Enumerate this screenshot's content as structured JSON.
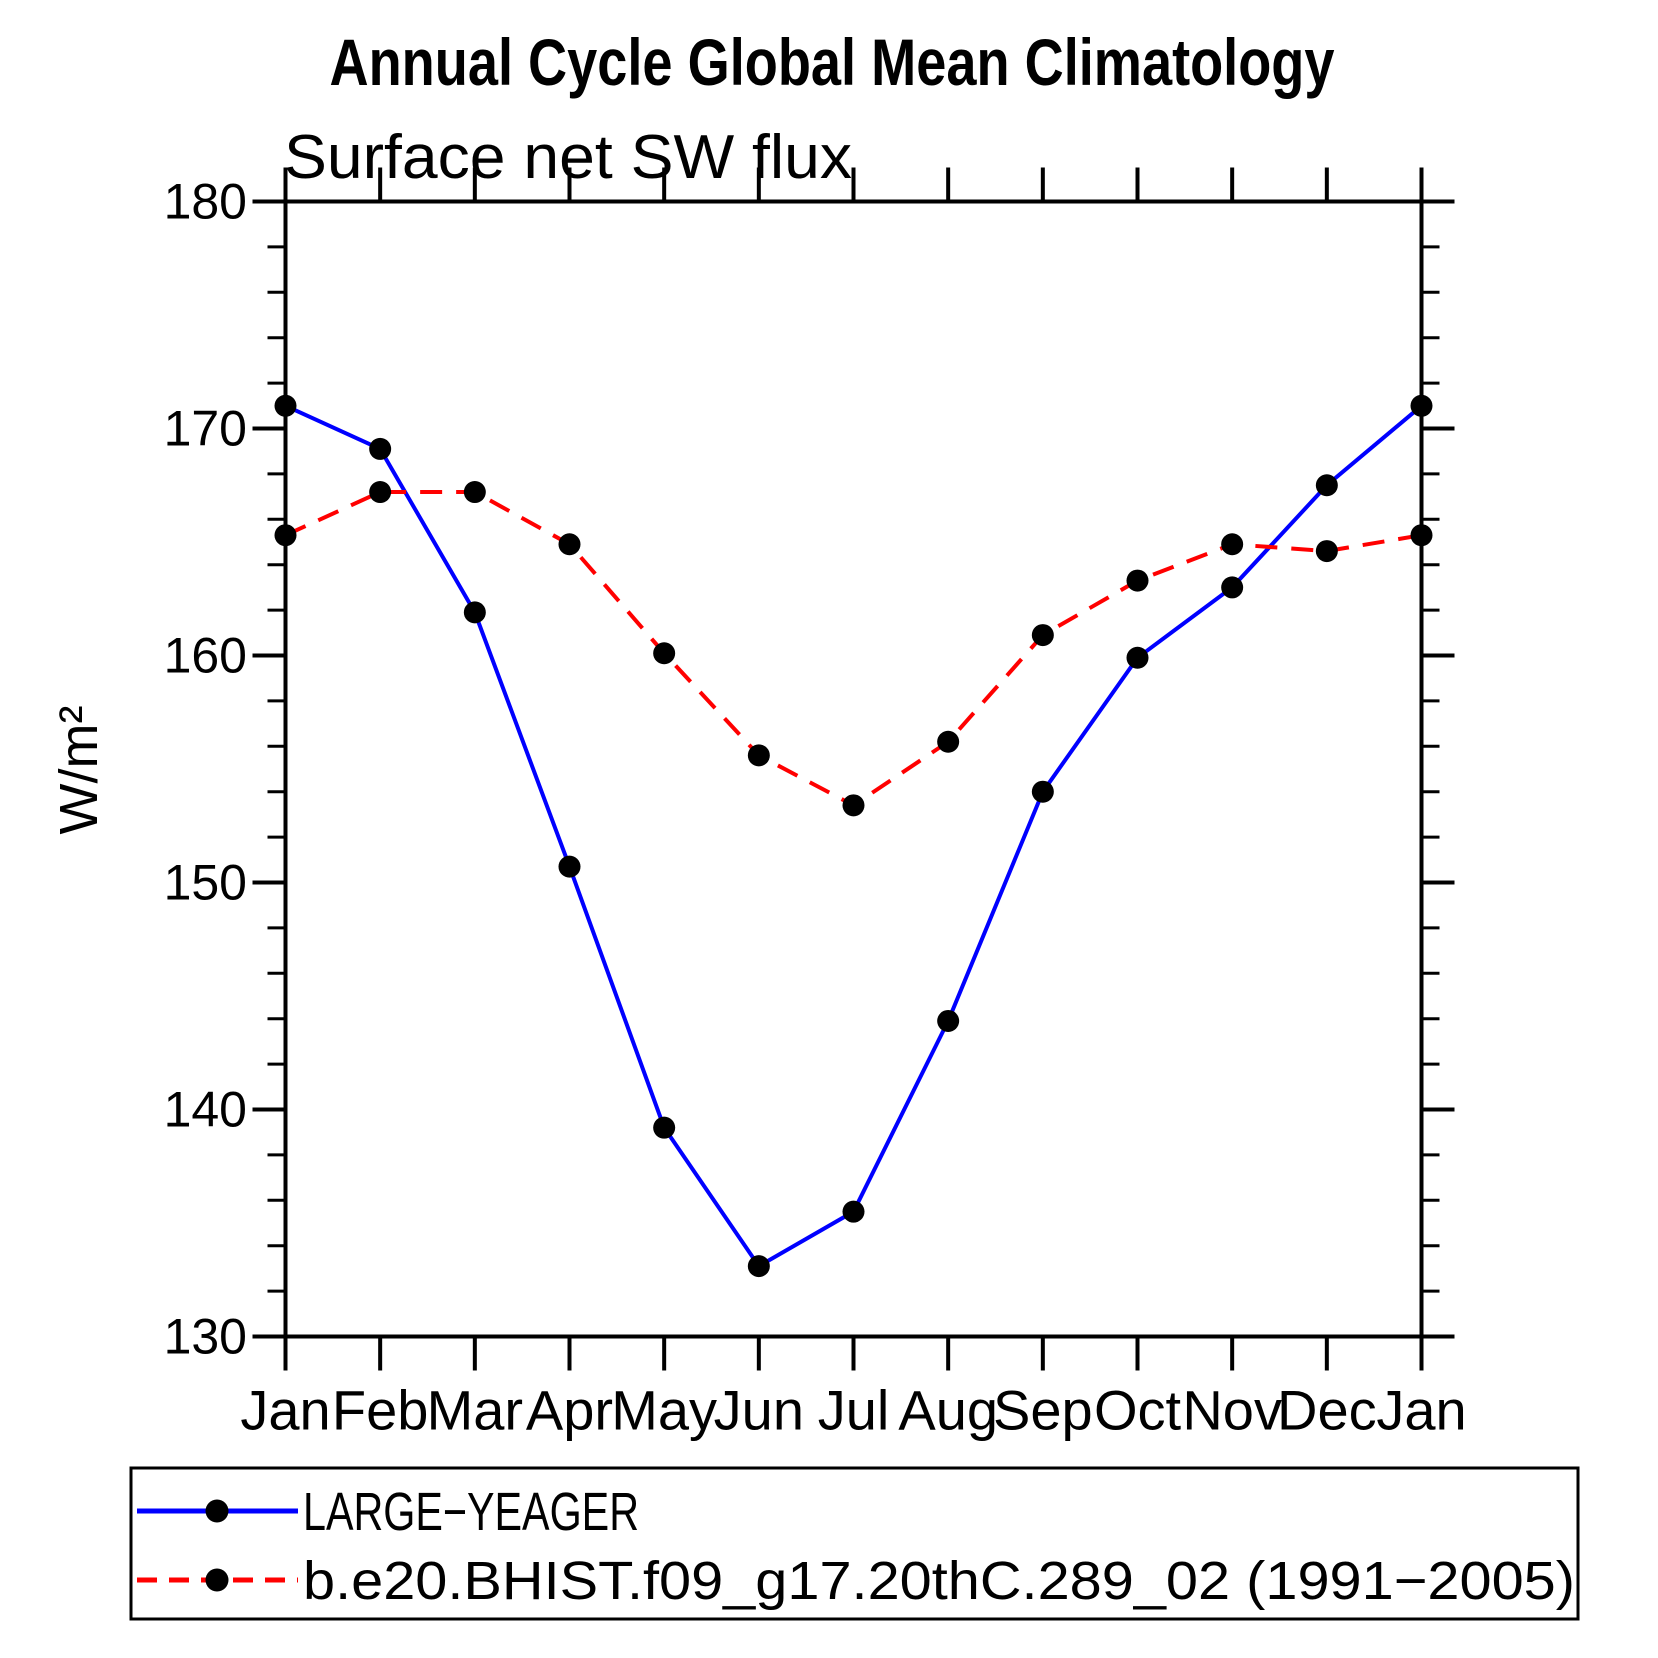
{
  "title": "Annual Cycle Global Mean Climatology",
  "subtitle": "Surface net SW flux",
  "chart_data": {
    "type": "line",
    "title": "Annual Cycle Global Mean Climatology",
    "subtitle": "Surface net SW flux",
    "ylabel": "W/m²",
    "xlabel": "",
    "categories": [
      "Jan",
      "Feb",
      "Mar",
      "Apr",
      "May",
      "Jun",
      "Jul",
      "Aug",
      "Sep",
      "Oct",
      "Nov",
      "Dec",
      "Jan"
    ],
    "ylim": [
      130,
      180
    ],
    "ytick_major_step": 10,
    "ytick_minor_step": 2,
    "ytick_labels": [
      "130",
      "140",
      "150",
      "160",
      "170",
      "180"
    ],
    "grid": "off",
    "legend_position": "bottom-box",
    "axis_color": "#000000",
    "marker_color": "#000000",
    "series": [
      {
        "name": "LARGE−YEAGER",
        "color": "#0000ff",
        "style": "solid",
        "marker": "circle",
        "values": [
          171.0,
          169.1,
          161.9,
          150.7,
          139.2,
          133.1,
          135.5,
          143.9,
          154.0,
          159.9,
          163.0,
          167.5,
          171.0
        ]
      },
      {
        "name": "b.e20.BHIST.f09_g17.20thC.289_02 (1991−2005)",
        "color": "#ff0000",
        "style": "dashed",
        "marker": "circle",
        "values": [
          165.3,
          167.2,
          167.2,
          164.9,
          160.1,
          155.6,
          153.4,
          156.2,
          160.9,
          163.3,
          164.9,
          164.6,
          165.3
        ]
      }
    ]
  }
}
